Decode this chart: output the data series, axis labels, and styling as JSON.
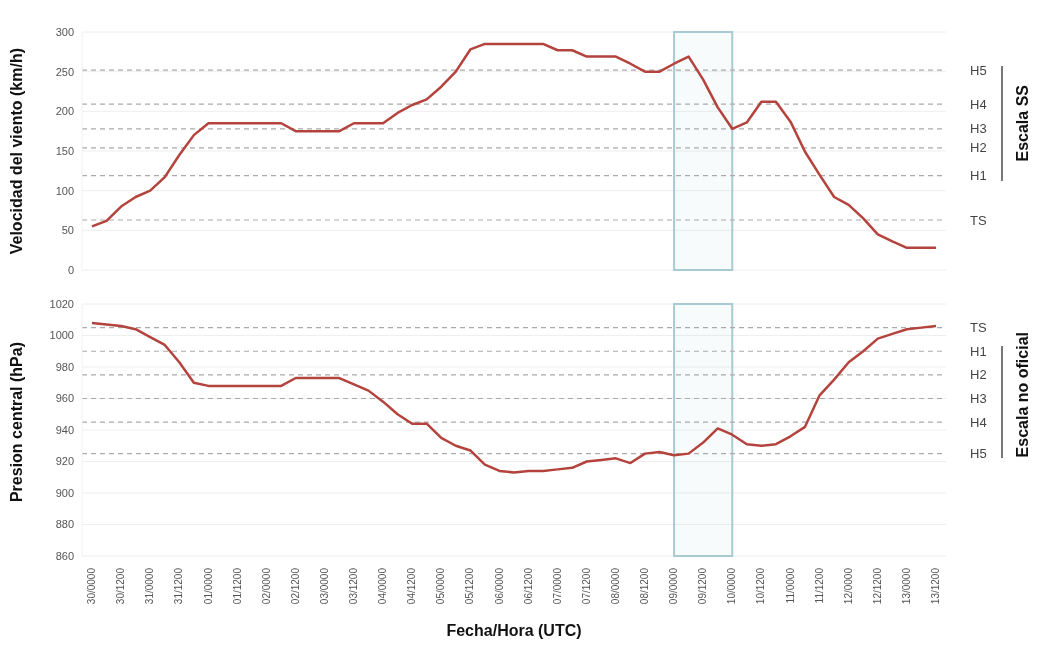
{
  "chart_data": [
    {
      "type": "line",
      "ylabel": "Velocidad del viento (km/h)",
      "annotations": [
        "Escala SS"
      ],
      "categories": [
        "30/0000",
        null,
        "30/1200",
        null,
        "31/0000",
        null,
        "31/1200",
        null,
        "01/0000",
        null,
        "01/1200",
        null,
        "02/0000",
        null,
        "02/1200",
        null,
        "03/0000",
        null,
        "03/1200",
        null,
        "04/0000",
        null,
        "04/1200",
        null,
        "05/0000",
        null,
        "05/1200",
        null,
        "06/0000",
        null,
        "06/1200",
        null,
        "07/0000",
        null,
        "07/1200",
        null,
        "08/0000",
        null,
        "08/1200",
        null,
        "09/0000",
        null,
        "09/1200",
        null,
        "10/0000",
        null,
        "10/1200",
        null,
        "11/0000",
        null,
        "11/1200",
        null,
        "12/0000",
        null,
        "12/1200",
        null,
        "13/0000",
        null,
        "13/1200"
      ],
      "series": [
        {
          "color": "#b3433c",
          "values": [
            55,
            62,
            80,
            92,
            100,
            117,
            145,
            170,
            185,
            185,
            185,
            185,
            185,
            185,
            175,
            175,
            175,
            175,
            185,
            185,
            185,
            198,
            208,
            215,
            231,
            250,
            278,
            285,
            285,
            285,
            285,
            285,
            277,
            277,
            269,
            269,
            269,
            260,
            250,
            250,
            260,
            269,
            240,
            205,
            178,
            186,
            212,
            212,
            187,
            149,
            120,
            92,
            82,
            65,
            45,
            36,
            28,
            28,
            28
          ]
        }
      ],
      "ylim": [
        0,
        300
      ],
      "yticks": [
        0,
        50,
        100,
        150,
        200,
        250,
        300
      ],
      "grid": "y",
      "tick_labels": "y",
      "ref_lines": [
        {
          "axis": "y",
          "value": 63,
          "label": "TS",
          "color": "#aaaaaa",
          "line_style": "dashed"
        },
        {
          "axis": "y",
          "value": 119,
          "label": "H1",
          "color": "#aaaaaa",
          "line_style": "dashed"
        },
        {
          "axis": "y",
          "value": 154,
          "label": "H2",
          "color": "#aaaaaa",
          "line_style": "dashed"
        },
        {
          "axis": "y",
          "value": 178,
          "label": "H3",
          "color": "#aaaaaa",
          "line_style": "dashed"
        },
        {
          "axis": "y",
          "value": 209,
          "label": "H4",
          "color": "#aaaaaa",
          "line_style": "dashed"
        },
        {
          "axis": "y",
          "value": 252,
          "label": "H5",
          "color": "#aaaaaa",
          "line_style": "dashed"
        }
      ],
      "bands": [
        {
          "axis": "x",
          "from": "09/0000",
          "to": "10/0000",
          "color": "#a8cbd3"
        }
      ]
    },
    {
      "type": "line",
      "ylabel": "Presion central (hPa)",
      "xlabel": "Fecha/Hora (UTC)",
      "annotations": [
        "Escala no oficial"
      ],
      "categories": [
        "30/0000",
        null,
        "30/1200",
        null,
        "31/0000",
        null,
        "31/1200",
        null,
        "01/0000",
        null,
        "01/1200",
        null,
        "02/0000",
        null,
        "02/1200",
        null,
        "03/0000",
        null,
        "03/1200",
        null,
        "04/0000",
        null,
        "04/1200",
        null,
        "05/0000",
        null,
        "05/1200",
        null,
        "06/0000",
        null,
        "06/1200",
        null,
        "07/0000",
        null,
        "07/1200",
        null,
        "08/0000",
        null,
        "08/1200",
        null,
        "09/0000",
        null,
        "09/1200",
        null,
        "10/0000",
        null,
        "10/1200",
        null,
        "11/0000",
        null,
        "11/1200",
        null,
        "12/0000",
        null,
        "12/1200",
        null,
        "13/0000",
        null,
        "13/1200"
      ],
      "series": [
        {
          "color": "#b3433c",
          "values": [
            1008,
            1007,
            1006,
            1004,
            999,
            994,
            983,
            970,
            968,
            968,
            968,
            968,
            968,
            968,
            973,
            973,
            973,
            973,
            969,
            965,
            958,
            950,
            944,
            944,
            935,
            930,
            927,
            918,
            914,
            913,
            914,
            914,
            915,
            916,
            920,
            921,
            922,
            919,
            925,
            926,
            924,
            925,
            932,
            941,
            937,
            931,
            930,
            931,
            936,
            942,
            962,
            972,
            983,
            990,
            998,
            1001,
            1004,
            1005,
            1006
          ]
        }
      ],
      "ylim": [
        860,
        1020
      ],
      "yticks": [
        860,
        880,
        900,
        920,
        940,
        960,
        980,
        1000,
        1020
      ],
      "grid": "y",
      "ref_lines": [
        {
          "axis": "y",
          "value": 1005,
          "label": "TS",
          "color": "#aaaaaa",
          "line_style": "dashed"
        },
        {
          "axis": "y",
          "value": 990,
          "label": "H1",
          "color": "#aaaaaa",
          "line_style": "dashed"
        },
        {
          "axis": "y",
          "value": 975,
          "label": "H2",
          "color": "#aaaaaa",
          "line_style": "dashed"
        },
        {
          "axis": "y",
          "value": 960,
          "label": "H3",
          "color": "#aaaaaa",
          "line_style": "dashed"
        },
        {
          "axis": "y",
          "value": 945,
          "label": "H4",
          "color": "#aaaaaa",
          "line_style": "dashed"
        },
        {
          "axis": "y",
          "value": 925,
          "label": "H5",
          "color": "#aaaaaa",
          "line_style": "dashed"
        }
      ],
      "bands": [
        {
          "axis": "x",
          "from": "09/0000",
          "to": "10/0000",
          "color": "#a8cbd3"
        }
      ]
    }
  ]
}
